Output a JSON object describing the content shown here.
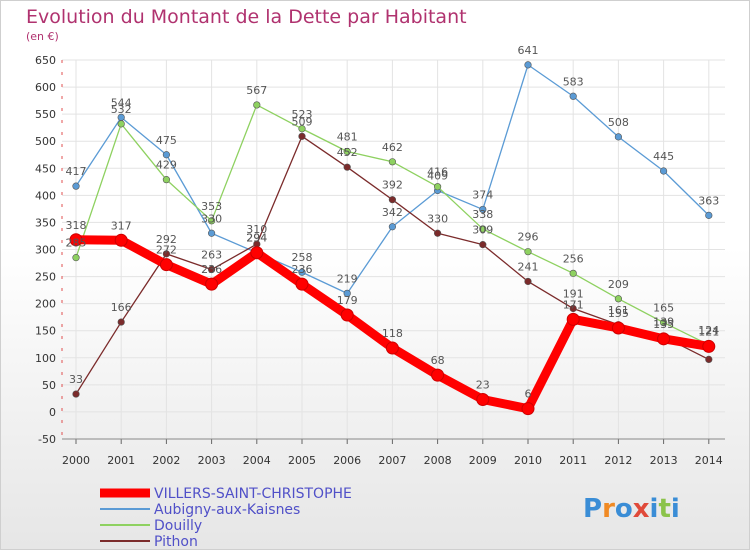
{
  "chart_data": {
    "type": "line",
    "title": "Evolution du Montant de la Dette par Habitant",
    "subtitle": "(en €)",
    "xlabel": "",
    "ylabel": "",
    "x": [
      "2000",
      "2001",
      "2002",
      "2003",
      "2004",
      "2005",
      "2006",
      "2007",
      "2008",
      "2009",
      "2010",
      "2011",
      "2012",
      "2013",
      "2014"
    ],
    "ylim": [
      -50,
      650
    ],
    "yticks": [
      "-50",
      "0",
      "50",
      "100",
      "150",
      "200",
      "250",
      "300",
      "350",
      "400",
      "450",
      "500",
      "550",
      "600",
      "650"
    ],
    "grid": true,
    "legend_position": "bottom-left",
    "series": [
      {
        "name": "VILLERS-SAINT-CHRISTOPHE",
        "color": "#ff0000",
        "values": [
          318,
          317,
          272,
          236,
          294,
          236,
          179,
          118,
          68,
          23,
          6,
          171,
          155,
          135,
          121
        ],
        "labels": [
          "318",
          "317",
          "272",
          "236",
          "294",
          "236",
          "179",
          "118",
          "68",
          "23",
          "6",
          "171",
          "155",
          "135",
          "121"
        ]
      },
      {
        "name": "Aubigny-aux-Kaisnes",
        "color": "#5b9bd5",
        "values": [
          417,
          544,
          475,
          330,
          294,
          258,
          219,
          342,
          409,
          374,
          641,
          583,
          508,
          445,
          363
        ],
        "labels": [
          "417",
          "544",
          "475",
          "330",
          "294",
          "258",
          "219",
          "342",
          "409",
          "374",
          "641",
          "583",
          "508",
          "445",
          "363"
        ]
      },
      {
        "name": "Douilly",
        "color": "#8ed160",
        "values": [
          285,
          532,
          429,
          353,
          567,
          523,
          481,
          462,
          416,
          338,
          296,
          256,
          209,
          165,
          124
        ],
        "labels": [
          "285",
          "532",
          "429",
          "353",
          "567",
          "523",
          "481",
          "462",
          "416",
          "338",
          "296",
          "256",
          "209",
          "165",
          "124"
        ]
      },
      {
        "name": "Pithon",
        "color": "#7b2b2b",
        "values": [
          33,
          166,
          292,
          263,
          310,
          509,
          452,
          392,
          330,
          309,
          241,
          191,
          161,
          139,
          97
        ],
        "labels": [
          "33",
          "166",
          "292",
          "263",
          "310",
          "509",
          "452",
          "392",
          "330",
          "309",
          "241",
          "191",
          "161",
          "139",
          ""
        ]
      }
    ]
  },
  "logo": {
    "text": "Proxiti",
    "letters": [
      "P",
      "r",
      "o",
      "x",
      "i",
      "t",
      "i"
    ],
    "colors": [
      "#3a8dd6",
      "#f08a24",
      "#3a8dd6",
      "#e04a3a",
      "#3a8dd6",
      "#8bc34a",
      "#3a8dd6"
    ]
  }
}
